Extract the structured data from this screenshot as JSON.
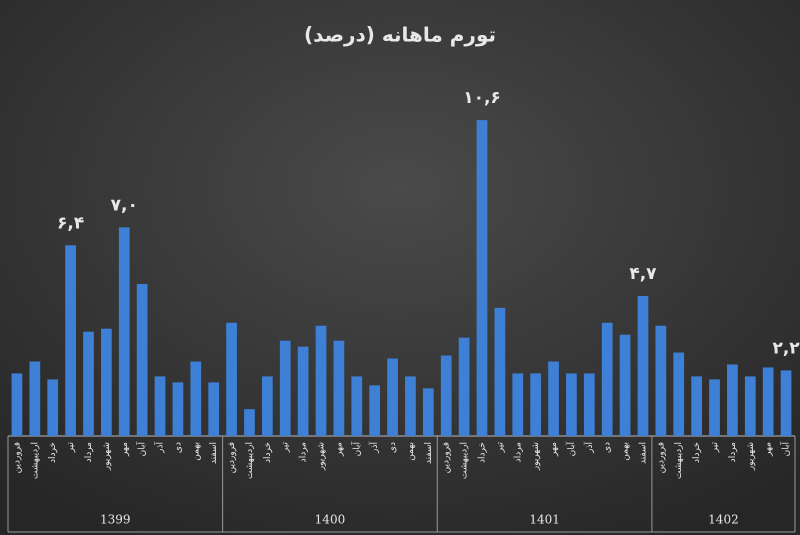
{
  "chart_data": {
    "type": "bar",
    "title": "تورم ماهانه (درصد)",
    "color": "#3d80d6",
    "ylim": [
      0,
      12
    ],
    "groups": [
      {
        "label": "1399",
        "categories": [
          "فروردین",
          "اردیبهشت",
          "خرداد",
          "تیر",
          "مرداد",
          "شهریور",
          "مهر",
          "آبان",
          "آذر",
          "دی",
          "بهمن",
          "اسفند"
        ],
        "values": [
          2.1,
          2.5,
          1.9,
          6.4,
          3.5,
          3.6,
          7.0,
          5.1,
          2.0,
          1.8,
          2.5,
          1.8
        ],
        "value_labels": [
          null,
          null,
          null,
          "۶,۴",
          null,
          null,
          "۷,۰",
          null,
          null,
          null,
          null,
          null
        ]
      },
      {
        "label": "1400",
        "categories": [
          "فروردین",
          "اردیبهشت",
          "خرداد",
          "تیر",
          "مرداد",
          "شهریور",
          "مهر",
          "آبان",
          "آذر",
          "دی",
          "بهمن",
          "اسفند"
        ],
        "values": [
          3.8,
          0.9,
          2.0,
          3.2,
          3.0,
          3.7,
          3.2,
          2.0,
          1.7,
          2.6,
          2.0,
          1.6
        ],
        "value_labels": [
          null,
          null,
          null,
          null,
          null,
          null,
          null,
          null,
          null,
          null,
          null,
          null
        ]
      },
      {
        "label": "1401",
        "categories": [
          "فروردین",
          "اردیبهشت",
          "خرداد",
          "تیر",
          "مرداد",
          "شهریور",
          "مهر",
          "آبان",
          "آذر",
          "دی",
          "بهمن",
          "اسفند"
        ],
        "values": [
          2.7,
          3.3,
          10.6,
          4.3,
          2.1,
          2.1,
          2.5,
          2.1,
          2.1,
          3.8,
          3.4,
          4.7
        ],
        "value_labels": [
          null,
          null,
          "۱۰,۶",
          null,
          null,
          null,
          null,
          null,
          null,
          null,
          null,
          "۴,۷"
        ]
      },
      {
        "label": "1402",
        "categories": [
          "فروردین",
          "اردیبهشت",
          "خرداد",
          "تیر",
          "مرداد",
          "شهریور",
          "مهر",
          "آبان"
        ],
        "values": [
          3.7,
          2.8,
          2.0,
          1.9,
          2.4,
          2.0,
          2.3,
          2.2
        ],
        "value_labels": [
          null,
          null,
          null,
          null,
          null,
          null,
          null,
          "۲,۲"
        ]
      }
    ]
  }
}
